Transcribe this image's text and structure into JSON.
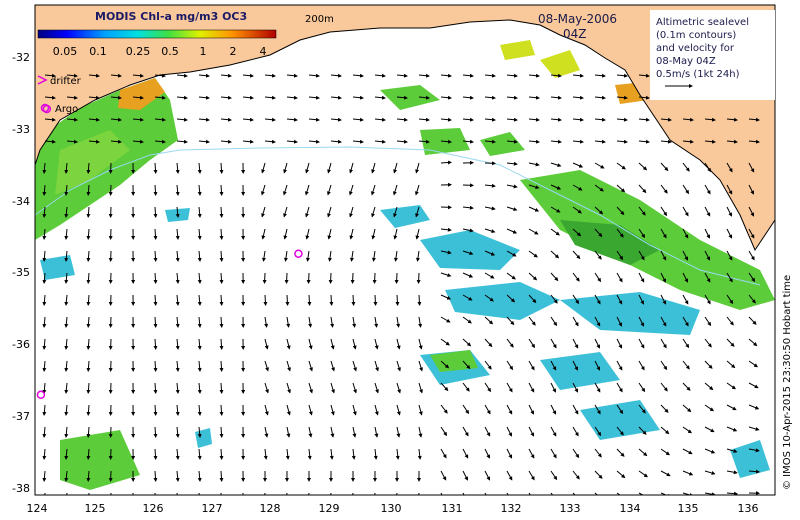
{
  "colorbar": {
    "title": "MODIS Chl-a mg/m3 OC3",
    "tick_labels": [
      "0.05",
      "0.1",
      "0.25",
      "0.5",
      "1",
      "2",
      "4"
    ]
  },
  "contour_label": "200m",
  "date_label": "08-May-2006",
  "time_label": "04Z",
  "info_box": {
    "lines": [
      "Altimetric sealevel",
      "(0.1m contours)",
      "and velocity for",
      "08-May 04Z",
      "0.5m/s (1kt 24h)"
    ]
  },
  "legend": {
    "drifter_label": "drifter",
    "argo_label": "Argo"
  },
  "x_axis": {
    "tick_labels": [
      "124",
      "125",
      "126",
      "127",
      "128",
      "129",
      "130",
      "131",
      "132",
      "133",
      "134",
      "135",
      "136"
    ]
  },
  "y_axis": {
    "tick_labels": [
      "-32",
      "-33",
      "-34",
      "-35",
      "-36",
      "-37",
      "-38"
    ]
  },
  "credit": "© IMOS 10-Apr-2015 23:30:50 Hobart time",
  "colors": {
    "land": "#f9c89b",
    "ocean": "#ffffff",
    "argo_marker": "#e000e0",
    "chl_high": "#e8a020",
    "chl_mid": "#5ccc3a",
    "chl_low": "#3cc0d8"
  },
  "map_extent": {
    "lon_range": [
      124,
      136.5
    ],
    "lat_range": [
      -38.1,
      -31.5
    ]
  },
  "argo_floats": [
    {
      "lon": 124.2,
      "lat": -32.9
    },
    {
      "lon": 128.45,
      "lat": -34.85
    },
    {
      "lon": 124.1,
      "lat": -36.75
    }
  ]
}
